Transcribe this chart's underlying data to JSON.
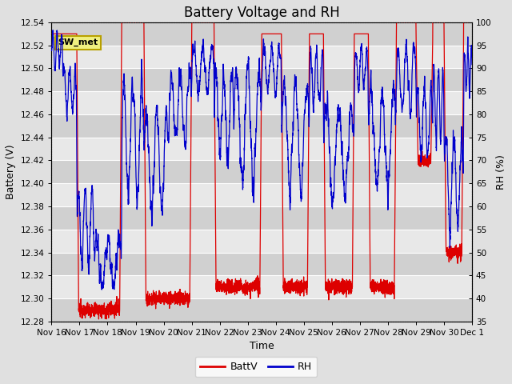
{
  "title": "Battery Voltage and RH",
  "xlabel": "Time",
  "ylabel_left": "Battery (V)",
  "ylabel_right": "RH (%)",
  "ylim_left": [
    12.28,
    12.54
  ],
  "ylim_right": [
    35,
    100
  ],
  "yticks_left": [
    12.28,
    12.3,
    12.32,
    12.34,
    12.36,
    12.38,
    12.4,
    12.42,
    12.44,
    12.46,
    12.48,
    12.5,
    12.52,
    12.54
  ],
  "yticks_right": [
    35,
    40,
    45,
    50,
    55,
    60,
    65,
    70,
    75,
    80,
    85,
    90,
    95,
    100
  ],
  "xtick_labels": [
    "Nov 16",
    "Nov 17",
    "Nov 18",
    "Nov 19",
    "Nov 20",
    "Nov 21",
    "Nov 22",
    "Nov 23",
    "Nov 24",
    "Nov 25",
    "Nov 26",
    "Nov 27",
    "Nov 28",
    "Nov 29",
    "Nov 30",
    "Dec 1"
  ],
  "plot_bg_light": "#e8e8e8",
  "plot_bg_dark": "#d0d0d0",
  "fig_bg_color": "#e0e0e0",
  "line_color_batt": "#dd0000",
  "line_color_rh": "#0000cc",
  "legend_label_batt": "BattV",
  "legend_label_rh": "RH",
  "annotation_text": "SW_met",
  "title_fontsize": 12,
  "label_fontsize": 9,
  "tick_fontsize": 7.5
}
